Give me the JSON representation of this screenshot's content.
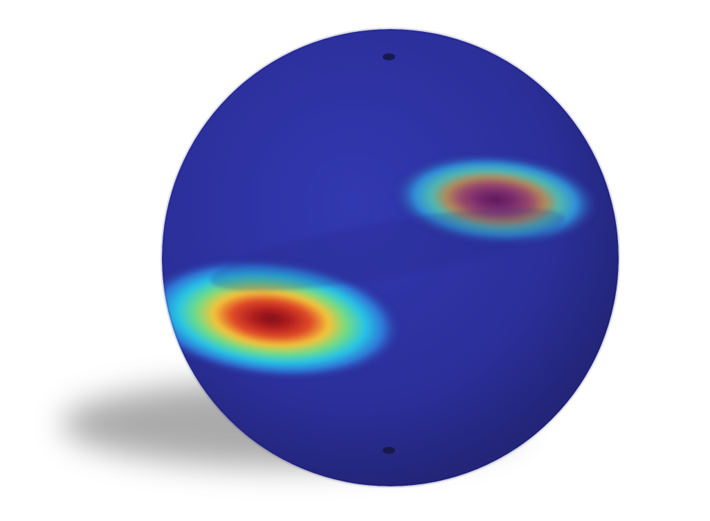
{
  "colors": {
    "background": "#ffffff",
    "sphere_base": "#2b2f9a",
    "sphere_edge": "#232579",
    "shadow": "#9a9a9a",
    "hotspot_core_strong": "#a3191c",
    "hotspot_core_weak": "#6b2a6f",
    "hotspot_mid": "#f2d43a",
    "hotspot_outer": "#3ec9d6"
  },
  "hotspots": [
    {
      "name": "hotspot-lower-left",
      "intensity": 1.0
    },
    {
      "name": "hotspot-upper-right",
      "intensity": 0.6
    }
  ],
  "pole_markers": [
    "north-pole-marker",
    "south-pole-marker"
  ]
}
